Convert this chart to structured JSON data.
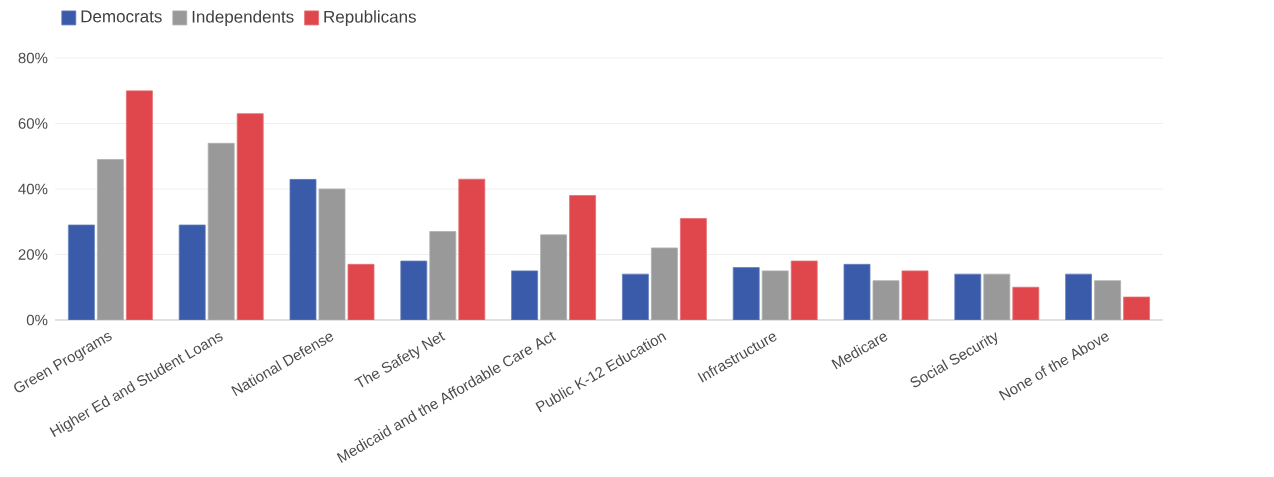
{
  "chart_data": {
    "type": "bar",
    "categories": [
      "Green Programs",
      "Higher Ed and Student Loans",
      "National Defense",
      "The Safety Net",
      "Medicaid and the Affordable Care Act",
      "Public K-12 Education",
      "Infrastructure",
      "Medicare",
      "Social Security",
      "None of the Above"
    ],
    "series": [
      {
        "name": "Democrats",
        "color": "#3a5ba9",
        "values": [
          29,
          29,
          43,
          18,
          15,
          14,
          16,
          17,
          14,
          14
        ]
      },
      {
        "name": "Independents",
        "color": "#999999",
        "values": [
          49,
          54,
          40,
          27,
          26,
          22,
          15,
          12,
          14,
          12
        ]
      },
      {
        "name": "Republicans",
        "color": "#e0474c",
        "values": [
          70,
          63,
          17,
          43,
          38,
          31,
          18,
          15,
          10,
          7
        ]
      }
    ],
    "ylim": [
      0,
      80
    ],
    "yticks": [
      {
        "value": 0,
        "label": "0%"
      },
      {
        "value": 20,
        "label": "20%"
      },
      {
        "value": 40,
        "label": "40%"
      },
      {
        "value": 60,
        "label": "60%"
      },
      {
        "value": 80,
        "label": "80%"
      }
    ],
    "grid": "y",
    "legend": "top left"
  }
}
